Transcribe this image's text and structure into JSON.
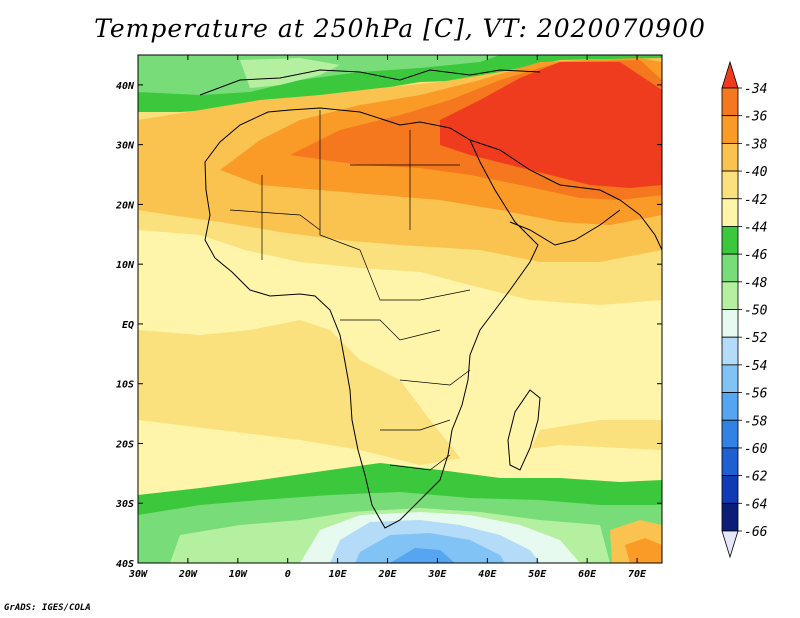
{
  "title": "Temperature at 250hPa [C], VT: 2020070900",
  "credit": "GrADS: IGES/COLA",
  "map": {
    "lon_range": [
      -30,
      75
    ],
    "lat_range": [
      -40,
      45
    ],
    "lon_ticks": [
      {
        "value": -30,
        "label": "30W"
      },
      {
        "value": -20,
        "label": "20W"
      },
      {
        "value": -10,
        "label": "10W"
      },
      {
        "value": 0,
        "label": "0"
      },
      {
        "value": 10,
        "label": "10E"
      },
      {
        "value": 20,
        "label": "20E"
      },
      {
        "value": 30,
        "label": "30E"
      },
      {
        "value": 40,
        "label": "40E"
      },
      {
        "value": 50,
        "label": "50E"
      },
      {
        "value": 60,
        "label": "60E"
      },
      {
        "value": 70,
        "label": "70E"
      }
    ],
    "lat_ticks": [
      {
        "value": 40,
        "label": "40N"
      },
      {
        "value": 30,
        "label": "30N"
      },
      {
        "value": 20,
        "label": "20N"
      },
      {
        "value": 10,
        "label": "10N"
      },
      {
        "value": 0,
        "label": "EQ"
      },
      {
        "value": -10,
        "label": "10S"
      },
      {
        "value": -20,
        "label": "20S"
      },
      {
        "value": -30,
        "label": "30S"
      },
      {
        "value": -40,
        "label": "40S"
      }
    ]
  },
  "colorbar": {
    "labels": [
      "-34",
      "-36",
      "-38",
      "-40",
      "-42",
      "-44",
      "-46",
      "-48",
      "-50",
      "-52",
      "-54",
      "-56",
      "-58",
      "-60",
      "-62",
      "-64",
      "-66"
    ],
    "colors": [
      "#f03c1e",
      "#f5781e",
      "#fa9b28",
      "#fac350",
      "#fae17d",
      "#fff5aa",
      "#3cc83c",
      "#78dc78",
      "#b4f0a0",
      "#e6faf0",
      "#b4dcf8",
      "#82c3f5",
      "#55a5f0",
      "#3282e6",
      "#1e5fd2",
      "#0f3cb4",
      "#0a1e78",
      "#e6e6fa"
    ]
  },
  "chart_data": {
    "type": "heatmap",
    "title": "Temperature at 250hPa [C], VT: 2020070900",
    "xlabel": "",
    "ylabel": "",
    "x_range": [
      -30,
      75
    ],
    "y_range": [
      -40,
      45
    ],
    "x_ticks": [
      "30W",
      "20W",
      "10W",
      "0",
      "10E",
      "20E",
      "30E",
      "40E",
      "50E",
      "60E",
      "70E"
    ],
    "y_ticks": [
      "40N",
      "30N",
      "20N",
      "10N",
      "EQ",
      "10S",
      "20S",
      "30S",
      "40S"
    ],
    "legend_levels": [
      -34,
      -36,
      -38,
      -40,
      -42,
      -44,
      -46,
      -48,
      -50,
      -52,
      -54,
      -56,
      -58,
      -60,
      -62,
      -64,
      -66
    ],
    "units": "C"
  }
}
